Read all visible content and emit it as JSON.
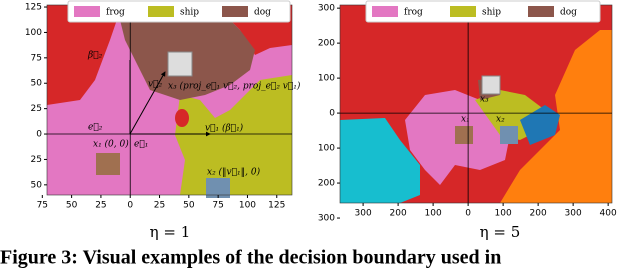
{
  "legend": [
    {
      "name": "frog",
      "color": "#e377c2"
    },
    {
      "name": "ship",
      "color": "#bcbd22"
    },
    {
      "name": "dog",
      "color": "#8c564b"
    }
  ],
  "panels": [
    {
      "caption": "η = 1",
      "xlim": [
        -71,
        138
      ],
      "ylim": [
        -60,
        127
      ],
      "xticks": [
        {
          "value": -75,
          "label": "75"
        },
        {
          "value": -50,
          "label": "50"
        },
        {
          "value": -25,
          "label": "25"
        },
        0,
        25,
        50,
        75,
        100,
        125
      ],
      "yticks": [
        125,
        100,
        75,
        50,
        25,
        0,
        {
          "value": -25,
          "label": "25"
        },
        {
          "value": -50,
          "label": "50"
        }
      ],
      "annotations": [
        "β⃗₂",
        "v⃗₂",
        "x₃ (proj_e⃗₁ v⃗₂, proj_e⃗₂ v⃗₁)",
        "e⃗₂",
        "e⃗₁",
        "v⃗₁ (β⃗₁)",
        "x₁ (0, 0)",
        "x₂ (‖v⃗₁‖, 0)"
      ]
    },
    {
      "caption": "η = 5",
      "xlim": [
        -366,
        411
      ],
      "ylim": [
        -257,
        309
      ],
      "xticks": [
        {
          "value": -300,
          "label": "300"
        },
        {
          "value": -200,
          "label": "200"
        },
        {
          "value": -100,
          "label": "100"
        },
        0,
        100,
        200,
        300,
        400
      ],
      "yticks": [
        300,
        200,
        100,
        0,
        {
          "value": -100,
          "label": "100"
        },
        {
          "value": -200,
          "label": "200"
        },
        {
          "value": -300,
          "label": "300"
        }
      ],
      "annotations": [
        "x₃",
        "x₁",
        "x₂"
      ]
    }
  ],
  "figure_caption": "Figure 3: Visual examples of the decision boundary used in"
}
